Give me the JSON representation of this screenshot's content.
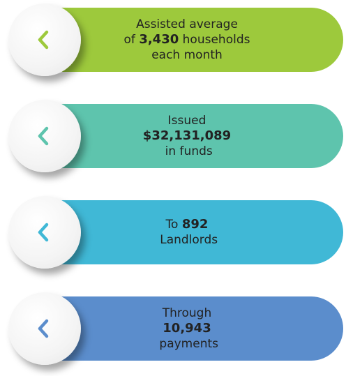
{
  "items": [
    {
      "color": "#9dc93c",
      "lines": [
        [
          {
            "text": "Assisted average"
          }
        ],
        [
          {
            "text": "of "
          },
          {
            "text": "3,430",
            "bold": true
          },
          {
            "text": " households"
          }
        ],
        [
          {
            "text": "each month"
          }
        ]
      ]
    },
    {
      "color": "#5ec4ad",
      "lines": [
        [
          {
            "text": "Issued"
          }
        ],
        [
          {
            "text": "$32,131,089",
            "bold": true
          }
        ],
        [
          {
            "text": " in funds"
          }
        ]
      ]
    },
    {
      "color": "#40b8d6",
      "lines": [
        [
          {
            "text": "To "
          },
          {
            "text": "892",
            "bold": true
          }
        ],
        [
          {
            "text": " Landlords"
          }
        ]
      ]
    },
    {
      "color": "#5b8dcc",
      "lines": [
        [
          {
            "text": "Through"
          }
        ],
        [
          {
            "text": "10,943",
            "bold": true
          }
        ],
        [
          {
            "text": " payments"
          }
        ]
      ]
    }
  ]
}
